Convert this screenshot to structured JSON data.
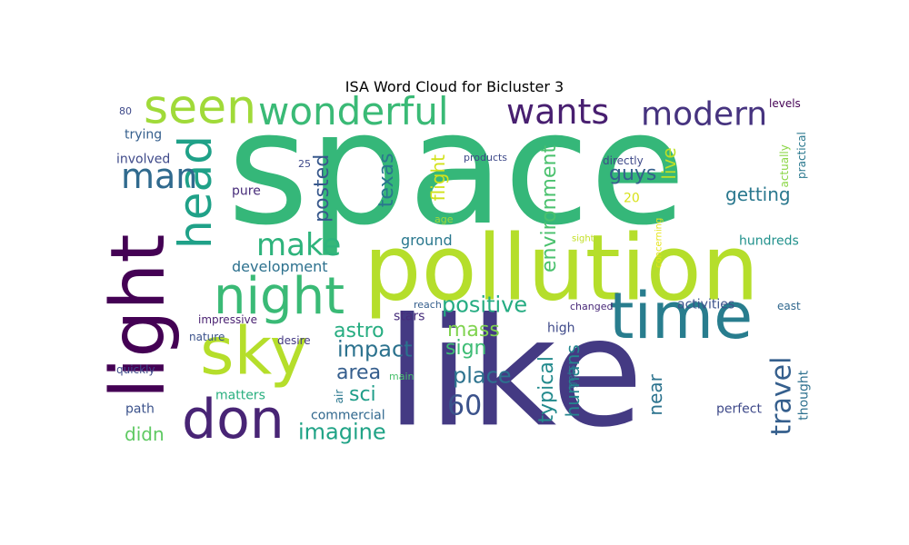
{
  "chart_data": {
    "type": "wordcloud",
    "title": "ISA Word Cloud for Bicluster 3",
    "words": [
      {
        "text": "space",
        "color": "#35b779"
      },
      {
        "text": "like",
        "color": "#443a83"
      },
      {
        "text": "pollution",
        "color": "#b5de2b"
      },
      {
        "text": "time",
        "color": "#287d8e"
      },
      {
        "text": "light",
        "color": "#440154"
      },
      {
        "text": "sky",
        "color": "#b5de2b"
      },
      {
        "text": "don",
        "color": "#482475"
      },
      {
        "text": "night",
        "color": "#3aba76"
      },
      {
        "text": "head",
        "color": "#1fa188"
      },
      {
        "text": "seen",
        "color": "#a0da39"
      },
      {
        "text": "wonderful",
        "color": "#3aba76"
      },
      {
        "text": "wants",
        "color": "#481f70"
      },
      {
        "text": "modern",
        "color": "#46337f"
      },
      {
        "text": "man",
        "color": "#306a8e"
      },
      {
        "text": "make",
        "color": "#2eb37c"
      },
      {
        "text": "travel",
        "color": "#355f8d"
      },
      {
        "text": "60",
        "color": "#3b528b"
      },
      {
        "text": "imagine",
        "color": "#20a386"
      },
      {
        "text": "positive",
        "color": "#25ac82"
      },
      {
        "text": "place",
        "color": "#2c728e"
      },
      {
        "text": "astro",
        "color": "#27ad81"
      },
      {
        "text": "impact",
        "color": "#2c728e"
      },
      {
        "text": "mass",
        "color": "#7fd34e"
      },
      {
        "text": "sign",
        "color": "#3dbc74"
      },
      {
        "text": "area",
        "color": "#355e8d"
      },
      {
        "text": "sci",
        "color": "#1f9e89"
      },
      {
        "text": "didn",
        "color": "#5ec962"
      },
      {
        "text": "getting",
        "color": "#2a788e"
      },
      {
        "text": "guys",
        "color": "#355f8d"
      },
      {
        "text": "posted",
        "color": "#38588c"
      },
      {
        "text": "texas",
        "color": "#2a778e"
      },
      {
        "text": "environment",
        "color": "#4ac16d"
      },
      {
        "text": "flight",
        "color": "#d2e21b"
      },
      {
        "text": "live",
        "color": "#bddf26"
      },
      {
        "text": "typical",
        "color": "#238a8d"
      },
      {
        "text": "humans",
        "color": "#24868e"
      },
      {
        "text": "near",
        "color": "#2c738e"
      },
      {
        "text": "development",
        "color": "#2d718e"
      },
      {
        "text": "ground",
        "color": "#2a788e"
      },
      {
        "text": "hundreds",
        "color": "#21918c"
      },
      {
        "text": "activities",
        "color": "#3b528b"
      },
      {
        "text": "perfect",
        "color": "#3e4989"
      },
      {
        "text": "thought",
        "color": "#2d708e"
      },
      {
        "text": "commercial",
        "color": "#31688e"
      },
      {
        "text": "matters",
        "color": "#29af7f"
      },
      {
        "text": "path",
        "color": "#3b528b"
      },
      {
        "text": "trying",
        "color": "#355f8d"
      },
      {
        "text": "involved",
        "color": "#3e4989"
      },
      {
        "text": "pure",
        "color": "#472c7a"
      },
      {
        "text": "impressive",
        "color": "#481f70"
      },
      {
        "text": "nature",
        "color": "#3b528b"
      },
      {
        "text": "desire",
        "color": "#443983"
      },
      {
        "text": "quickly",
        "color": "#3e4989"
      },
      {
        "text": "air",
        "color": "#2a778e"
      },
      {
        "text": "main",
        "color": "#4ac16d"
      },
      {
        "text": "stars",
        "color": "#472d7b"
      },
      {
        "text": "reach",
        "color": "#355f8d"
      },
      {
        "text": "high",
        "color": "#3e4989"
      },
      {
        "text": "gets",
        "color": "#2c728e"
      },
      {
        "text": "changed",
        "color": "#482878"
      },
      {
        "text": "east",
        "color": "#31688e"
      },
      {
        "text": "products",
        "color": "#3e4989"
      },
      {
        "text": "directly",
        "color": "#3e4989"
      },
      {
        "text": "20",
        "color": "#d8e219"
      },
      {
        "text": "age",
        "color": "#9fda3a"
      },
      {
        "text": "sight",
        "color": "#c2df23"
      },
      {
        "text": "concerning",
        "color": "#e5e419"
      },
      {
        "text": "actually",
        "color": "#8bd646"
      },
      {
        "text": "practical",
        "color": "#2a788e"
      },
      {
        "text": "levels",
        "color": "#440154"
      },
      {
        "text": "80",
        "color": "#3e4989"
      },
      {
        "text": "25",
        "color": "#3e4989"
      }
    ]
  }
}
